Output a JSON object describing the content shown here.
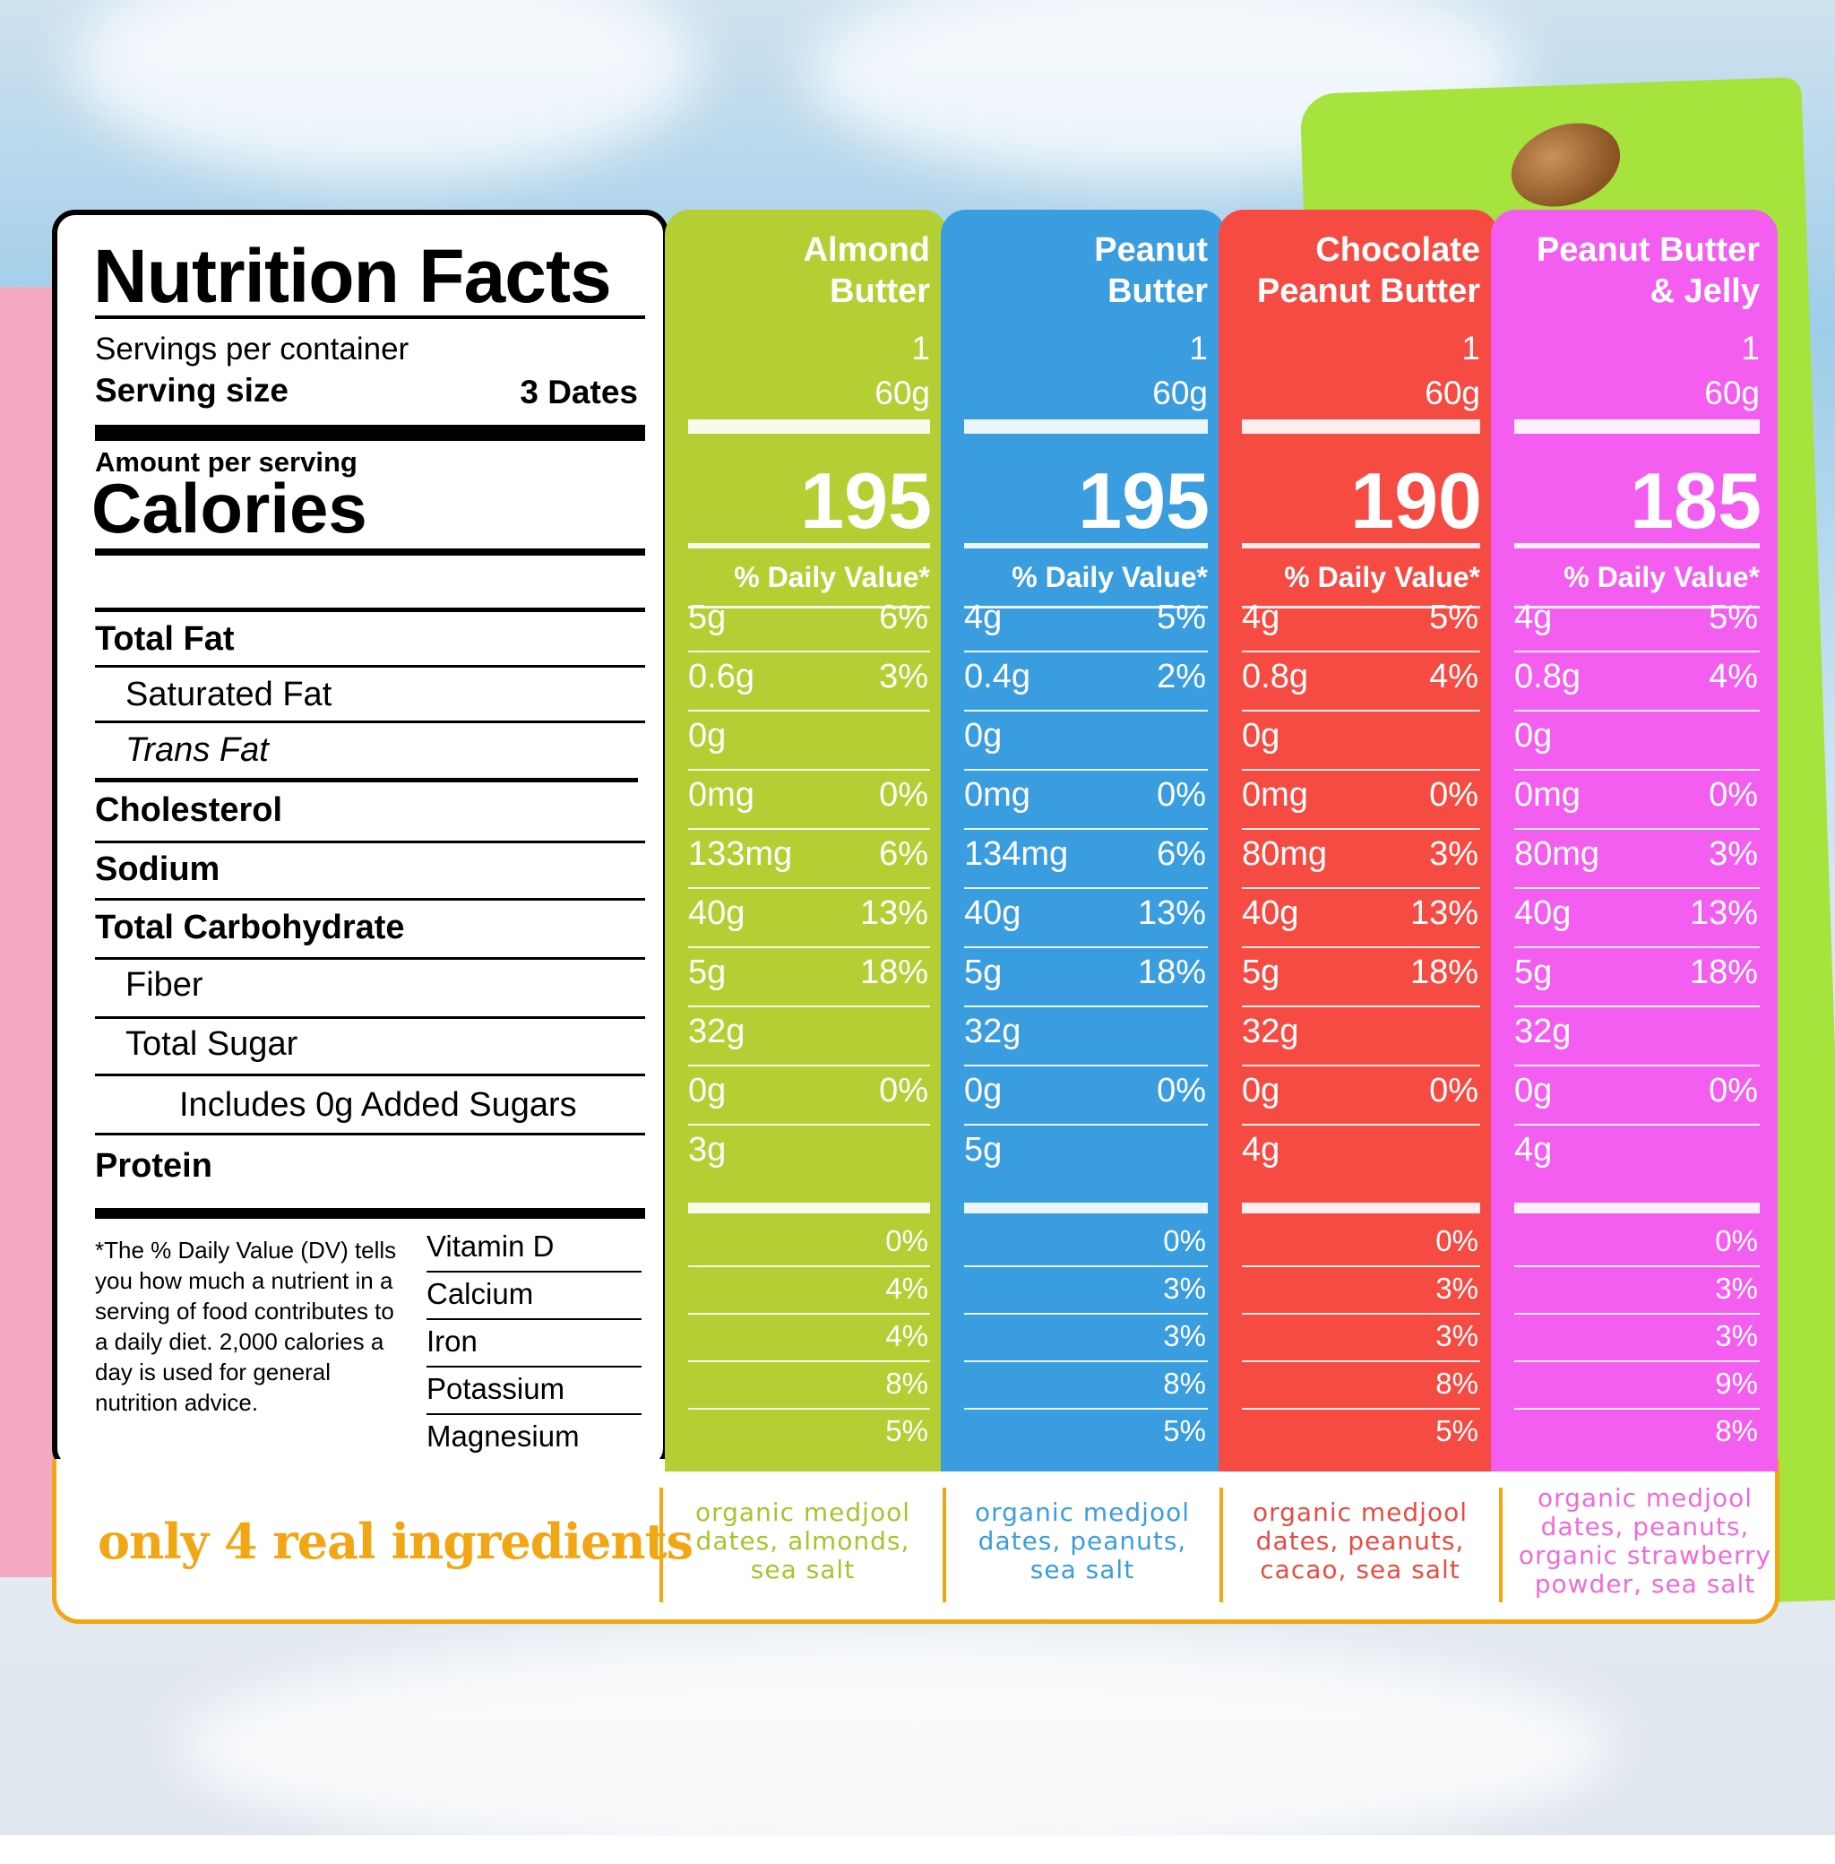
{
  "nutrition": {
    "title": "Nutrition Facts",
    "servings_label": "Servings per container",
    "serving_size_label": "Serving size",
    "serving_size_value": "3 Dates",
    "amount_label": "Amount per serving",
    "calories_label": "Calories",
    "nutrients": [
      "Total Fat",
      "Saturated Fat",
      "Trans Fat",
      "Cholesterol",
      "Sodium",
      "Total Carbohydrate",
      "Fiber",
      "Total Sugar",
      "Includes 0g Added Sugars",
      "Protein"
    ],
    "footnote": "*The % Daily Value (DV) tells you how much a nutrient in a serving of food contributes to a daily diet. 2,000 calories a day is used for general nutrition advice.",
    "vitamins": [
      "Vitamin D",
      "Calcium",
      "Iron",
      "Potassium",
      "Magnesium"
    ]
  },
  "products": [
    {
      "name_line1": "Almond",
      "name_line2": "Butter",
      "servings": "1",
      "size": "60g",
      "calories": "195",
      "dv_label": "% Daily Value*",
      "color": "#b3cf34",
      "rows": [
        [
          "5g",
          "6%"
        ],
        [
          "0.6g",
          "3%"
        ],
        [
          "0g",
          ""
        ],
        [
          "0mg",
          "0%"
        ],
        [
          "133mg",
          "6%"
        ],
        [
          "40g",
          "13%"
        ],
        [
          "5g",
          "18%"
        ],
        [
          "32g",
          ""
        ],
        [
          "0g",
          "0%"
        ],
        [
          "3g",
          ""
        ]
      ],
      "vitamins": [
        "0%",
        "4%",
        "4%",
        "8%",
        "5%"
      ],
      "ingredients_l1": "organic medjool",
      "ingredients_l2": "dates, almonds,",
      "ingredients_l3": "sea salt",
      "ingredients_l4": ""
    },
    {
      "name_line1": "Peanut",
      "name_line2": "Butter",
      "servings": "1",
      "size": "60g",
      "calories": "195",
      "dv_label": "% Daily Value*",
      "color": "#3a9de0",
      "rows": [
        [
          "4g",
          "5%"
        ],
        [
          "0.4g",
          "2%"
        ],
        [
          "0g",
          ""
        ],
        [
          "0mg",
          "0%"
        ],
        [
          "134mg",
          "6%"
        ],
        [
          "40g",
          "13%"
        ],
        [
          "5g",
          "18%"
        ],
        [
          "32g",
          ""
        ],
        [
          "0g",
          "0%"
        ],
        [
          "5g",
          ""
        ]
      ],
      "vitamins": [
        "0%",
        "3%",
        "3%",
        "8%",
        "5%"
      ],
      "ingredients_l1": "organic medjool",
      "ingredients_l2": "dates, peanuts,",
      "ingredients_l3": "sea salt",
      "ingredients_l4": ""
    },
    {
      "name_line1": "Chocolate",
      "name_line2": "Peanut Butter",
      "servings": "1",
      "size": "60g",
      "calories": "190",
      "dv_label": "% Daily Value*",
      "color": "#f64b43",
      "rows": [
        [
          "4g",
          "5%"
        ],
        [
          "0.8g",
          "4%"
        ],
        [
          "0g",
          ""
        ],
        [
          "0mg",
          "0%"
        ],
        [
          "80mg",
          "3%"
        ],
        [
          "40g",
          "13%"
        ],
        [
          "5g",
          "18%"
        ],
        [
          "32g",
          ""
        ],
        [
          "0g",
          "0%"
        ],
        [
          "4g",
          ""
        ]
      ],
      "vitamins": [
        "0%",
        "3%",
        "3%",
        "8%",
        "5%"
      ],
      "ingredients_l1": "organic medjool",
      "ingredients_l2": "dates, peanuts,",
      "ingredients_l3": "cacao, sea salt",
      "ingredients_l4": ""
    },
    {
      "name_line1": "Peanut Butter",
      "name_line2": "& Jelly",
      "servings": "1",
      "size": "60g",
      "calories": "185",
      "dv_label": "% Daily Value*",
      "color": "#f35ef0",
      "rows": [
        [
          "4g",
          "5%"
        ],
        [
          "0.8g",
          "4%"
        ],
        [
          "0g",
          ""
        ],
        [
          "0mg",
          "0%"
        ],
        [
          "80mg",
          "3%"
        ],
        [
          "40g",
          "13%"
        ],
        [
          "5g",
          "18%"
        ],
        [
          "32g",
          ""
        ],
        [
          "0g",
          "0%"
        ],
        [
          "4g",
          ""
        ]
      ],
      "vitamins": [
        "0%",
        "3%",
        "3%",
        "9%",
        "8%"
      ],
      "ingredients_l1": "organic medjool",
      "ingredients_l2": "dates, peanuts,",
      "ingredients_l3": "organic strawberry",
      "ingredients_l4": "powder, sea salt"
    }
  ],
  "ingredients_title": "only 4 real ingredients",
  "ingredient_colors": [
    "#a7c42c",
    "#3a9de0",
    "#e84b43",
    "#ef6bd8"
  ]
}
